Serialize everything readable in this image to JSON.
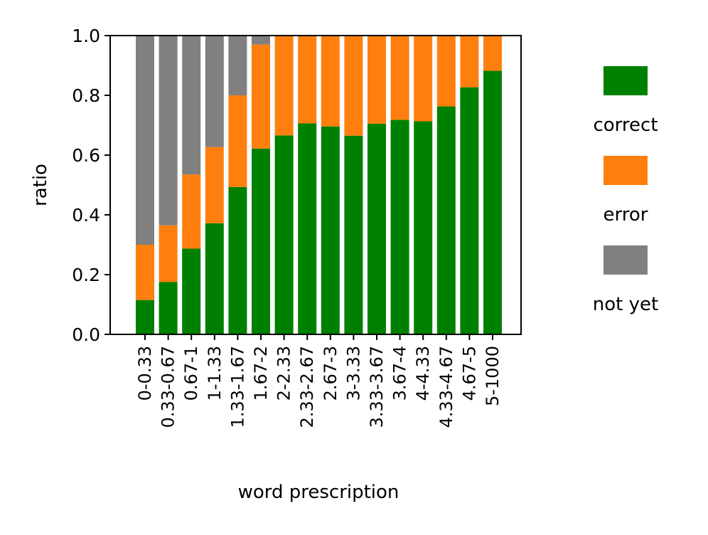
{
  "chart_data": {
    "type": "bar",
    "stacked": true,
    "title": "",
    "xlabel": "word prescription",
    "ylabel": "ratio",
    "ylim": [
      0,
      1
    ],
    "yticks": [
      "0.0",
      "0.2",
      "0.4",
      "0.6",
      "0.8",
      "1.0"
    ],
    "grid": false,
    "legend_position": "right",
    "categories": [
      "0-0.33",
      "0.33-0.67",
      "0.67-1",
      "1-1.33",
      "1.33-1.67",
      "1.67-2",
      "2-2.33",
      "2.33-2.67",
      "2.67-3",
      "3-3.33",
      "3.33-3.67",
      "3.67-4",
      "4-4.33",
      "4.33-4.67",
      "4.67-5",
      "5-1000"
    ],
    "series": [
      {
        "name": "correct",
        "color": "#008000",
        "values": [
          0.115,
          0.175,
          0.287,
          0.372,
          0.493,
          0.622,
          0.666,
          0.706,
          0.696,
          0.665,
          0.705,
          0.718,
          0.713,
          0.763,
          0.827,
          0.882
        ]
      },
      {
        "name": "error",
        "color": "#ff7f0e",
        "values": [
          0.185,
          0.19,
          0.248,
          0.255,
          0.307,
          0.348,
          0.334,
          0.294,
          0.304,
          0.335,
          0.295,
          0.282,
          0.287,
          0.237,
          0.173,
          0.118
        ]
      },
      {
        "name": "not yet",
        "color": "#808080",
        "values": [
          0.7,
          0.635,
          0.465,
          0.373,
          0.2,
          0.03,
          0,
          0,
          0,
          0,
          0,
          0,
          0,
          0,
          0,
          0
        ]
      }
    ]
  }
}
